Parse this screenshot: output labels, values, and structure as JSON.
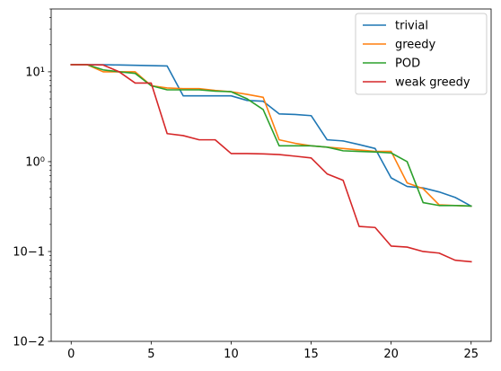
{
  "chart_data": {
    "type": "line",
    "title": "",
    "xlabel": "",
    "ylabel": "",
    "xlim": [
      -1.25,
      26.25
    ],
    "ylim": [
      0.01,
      50
    ],
    "yscale": "log",
    "grid": false,
    "legend_position": "top-right",
    "x_ticks": [
      0,
      5,
      10,
      15,
      20,
      25
    ],
    "x_tick_labels": [
      "0",
      "5",
      "10",
      "15",
      "20",
      "25"
    ],
    "y_ticks": [
      0.01,
      0.1,
      1,
      10
    ],
    "y_tick_labels": [
      "10−2",
      "10−1",
      "10⁰",
      "10¹"
    ],
    "x": [
      0,
      1,
      2,
      3,
      4,
      5,
      6,
      7,
      8,
      9,
      10,
      11,
      12,
      13,
      14,
      15,
      16,
      17,
      18,
      19,
      20,
      21,
      22,
      23,
      24,
      25
    ],
    "series": [
      {
        "name": "trivial",
        "color": "#1f77b4",
        "values": [
          12.0,
          12.0,
          12.0,
          11.9,
          11.8,
          11.7,
          11.6,
          5.4,
          5.4,
          5.4,
          5.4,
          4.8,
          4.7,
          3.4,
          3.35,
          3.25,
          1.75,
          1.7,
          1.55,
          1.4,
          0.66,
          0.53,
          0.51,
          0.46,
          0.4,
          0.32
        ]
      },
      {
        "name": "greedy",
        "color": "#ff7f0e",
        "values": [
          12.0,
          12.0,
          10.0,
          10.0,
          10.0,
          7.0,
          6.6,
          6.5,
          6.5,
          6.2,
          6.0,
          5.6,
          5.2,
          1.75,
          1.6,
          1.5,
          1.45,
          1.4,
          1.35,
          1.3,
          1.3,
          0.58,
          0.5,
          0.33,
          0.325,
          0.32
        ]
      },
      {
        "name": "POD",
        "color": "#2ca02c",
        "values": [
          12.0,
          12.0,
          10.5,
          10.0,
          9.6,
          7.0,
          6.3,
          6.3,
          6.3,
          6.1,
          6.0,
          5.0,
          3.8,
          1.5,
          1.5,
          1.5,
          1.45,
          1.32,
          1.3,
          1.28,
          1.25,
          1.0,
          0.35,
          0.325,
          0.325,
          0.32
        ]
      },
      {
        "name": "weak greedy",
        "color": "#d62728",
        "values": [
          12.0,
          12.0,
          11.9,
          10.0,
          7.5,
          7.5,
          2.05,
          1.95,
          1.75,
          1.75,
          1.23,
          1.23,
          1.22,
          1.2,
          1.15,
          1.1,
          0.73,
          0.62,
          0.19,
          0.185,
          0.115,
          0.112,
          0.1,
          0.096,
          0.08,
          0.077
        ]
      }
    ]
  }
}
